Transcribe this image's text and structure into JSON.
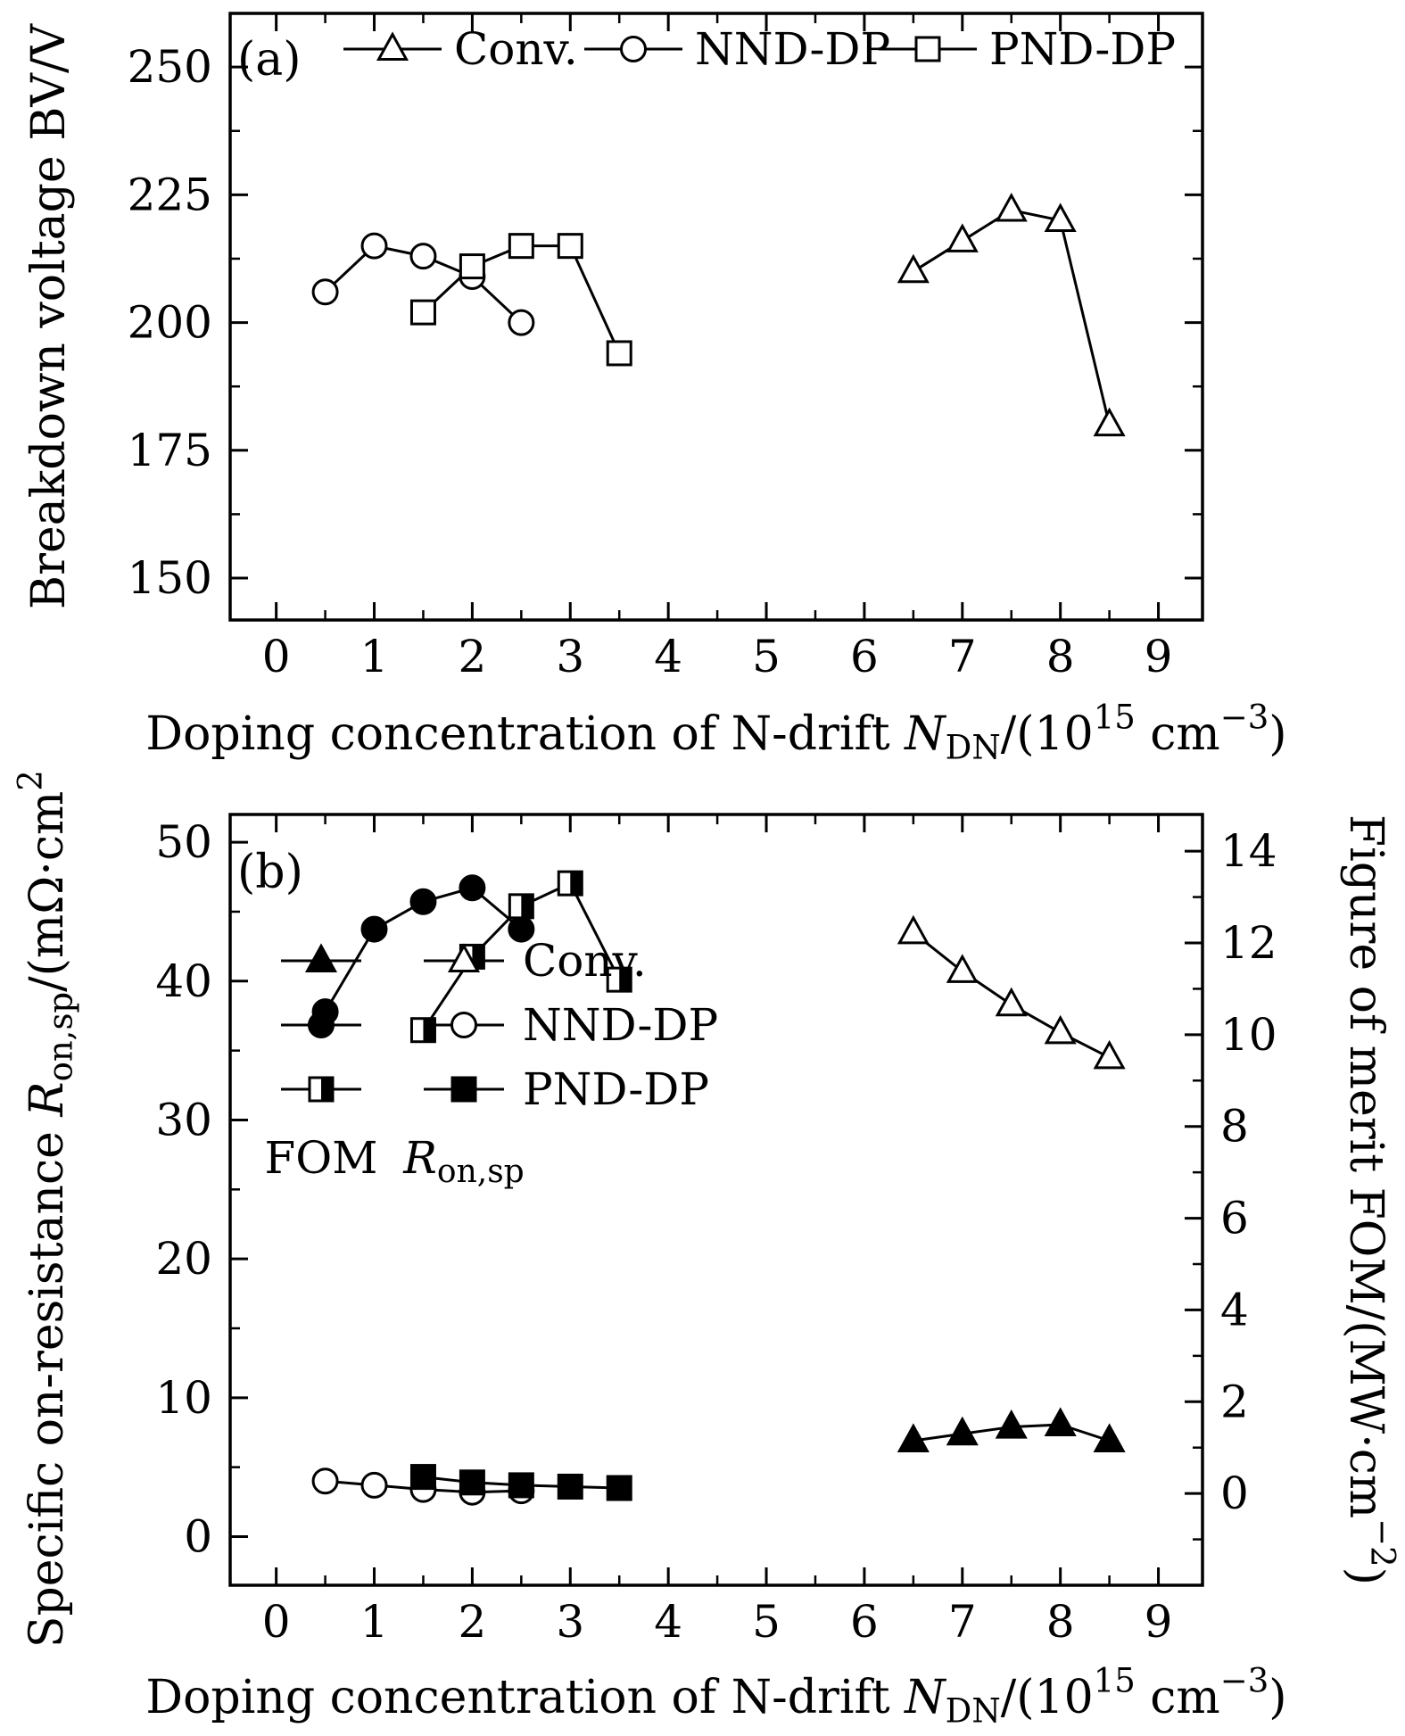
{
  "colors": {
    "ink": "#000000",
    "background": "#ffffff"
  },
  "chart_data": [
    {
      "id": "panel_a",
      "type": "line",
      "panel_tag": "(a)",
      "xlabel_parts": [
        {
          "t": "Doping concentration of N-drift "
        },
        {
          "t": "N",
          "i": true
        },
        {
          "t": "DN",
          "sub": true
        },
        {
          "t": "/(10"
        },
        {
          "t": "15",
          "sup": true
        },
        {
          "t": " cm"
        },
        {
          "t": "−3",
          "sup": true
        },
        {
          "t": ")"
        }
      ],
      "ylabel_parts": [
        {
          "t": "Breakdown voltage BV/V"
        }
      ],
      "xlim": [
        -0.47,
        9.45
      ],
      "ylim": [
        141.8,
        260.5
      ],
      "xticks": [
        0,
        1,
        2,
        3,
        4,
        5,
        6,
        7,
        8,
        9
      ],
      "xminor_step": 0.5,
      "yticks": [
        150,
        175,
        200,
        225,
        250
      ],
      "yminor_step": 12.5,
      "grid": false,
      "legend": {
        "position": "top-inside",
        "items": [
          {
            "marker": "triangle-open",
            "label": "Conv."
          },
          {
            "marker": "circle-open",
            "label": "NND-DP"
          },
          {
            "marker": "square-open",
            "label": "PND-DP"
          }
        ]
      },
      "series": [
        {
          "name": "Conv.",
          "marker": "triangle-open",
          "x": [
            6.5,
            7.0,
            7.5,
            8.0,
            8.5
          ],
          "y": [
            210,
            216,
            222,
            220,
            180
          ]
        },
        {
          "name": "NND-DP",
          "marker": "circle-open",
          "x": [
            0.5,
            1.0,
            1.5,
            2.0,
            2.5
          ],
          "y": [
            206,
            215,
            213,
            209,
            200
          ]
        },
        {
          "name": "PND-DP",
          "marker": "square-open",
          "x": [
            1.5,
            2.0,
            2.5,
            3.0,
            3.5
          ],
          "y": [
            202,
            211,
            215,
            215,
            194
          ]
        }
      ]
    },
    {
      "id": "panel_b",
      "type": "line",
      "panel_tag": "(b)",
      "xlabel_parts": [
        {
          "t": "Doping concentration of N-drift "
        },
        {
          "t": "N",
          "i": true
        },
        {
          "t": "DN",
          "sub": true
        },
        {
          "t": "/(10"
        },
        {
          "t": "15",
          "sup": true
        },
        {
          "t": " cm"
        },
        {
          "t": "−3",
          "sup": true
        },
        {
          "t": ")"
        }
      ],
      "ylabel_left_parts": [
        {
          "t": "Specific on-resistance "
        },
        {
          "t": "R",
          "i": true
        },
        {
          "t": "on,sp",
          "sub": true
        },
        {
          "t": "/(mΩ·cm"
        },
        {
          "t": "2",
          "sup": true
        },
        {
          "t": ")"
        }
      ],
      "ylabel_right_parts": [
        {
          "t": "Figure of merit FOM/(MW·cm"
        },
        {
          "t": "−2",
          "sup": true
        },
        {
          "t": ")"
        }
      ],
      "xlim": [
        -0.47,
        9.45
      ],
      "ylim_left": [
        -3.5,
        52
      ],
      "ylim_right": [
        -2.0,
        14.8
      ],
      "xticks": [
        0,
        1,
        2,
        3,
        4,
        5,
        6,
        7,
        8,
        9
      ],
      "xminor_step": 0.5,
      "yticks_left": [
        0,
        10,
        20,
        30,
        40,
        50
      ],
      "yminor_step_left": 5,
      "yticks_right": [
        0,
        2,
        4,
        6,
        8,
        10,
        12,
        14
      ],
      "yminor_step_right": 1,
      "grid": false,
      "legend": {
        "position": "middle-left-inside",
        "rows": [
          {
            "marker_fom": "triangle-filled",
            "marker_ron": "triangle-open",
            "label": "Conv."
          },
          {
            "marker_fom": "circle-filled",
            "marker_ron": "circle-open",
            "label": "NND-DP"
          },
          {
            "marker_fom": "square-half",
            "marker_ron": "square-filled",
            "label": "PND-DP"
          }
        ],
        "col_fom_label_parts": [
          {
            "t": "FOM"
          }
        ],
        "col_ron_label_parts": [
          {
            "t": "R",
            "i": true
          },
          {
            "t": "on,sp",
            "sub": true
          }
        ]
      },
      "series": [
        {
          "name": "Conv. Ron,sp",
          "axis": "left",
          "marker": "triangle-open",
          "x": [
            6.5,
            7.0,
            7.5,
            8.0,
            8.5
          ],
          "y": [
            43.5,
            40.7,
            38.3,
            36.3,
            34.5
          ]
        },
        {
          "name": "NND-DP Ron,sp",
          "axis": "left",
          "marker": "circle-open",
          "x": [
            0.5,
            1.0,
            1.5,
            2.0,
            2.5
          ],
          "y": [
            4.0,
            3.7,
            3.4,
            3.2,
            3.3
          ]
        },
        {
          "name": "PND-DP Ron,sp",
          "axis": "left",
          "marker": "square-filled",
          "x": [
            1.5,
            2.0,
            2.5,
            3.0,
            3.5
          ],
          "y": [
            4.3,
            3.9,
            3.7,
            3.6,
            3.5
          ]
        },
        {
          "name": "Conv. FOM",
          "axis": "right",
          "marker": "triangle-filled",
          "x": [
            6.5,
            7.0,
            7.5,
            8.0,
            8.5
          ],
          "y": [
            1.15,
            1.3,
            1.45,
            1.5,
            1.15
          ]
        },
        {
          "name": "NND-DP FOM",
          "axis": "right",
          "marker": "circle-filled",
          "x": [
            0.5,
            1.0,
            1.5,
            2.0,
            2.5
          ],
          "y": [
            10.5,
            12.3,
            12.9,
            13.2,
            12.3
          ]
        },
        {
          "name": "PND-DP FOM",
          "axis": "right",
          "marker": "square-half",
          "x": [
            1.5,
            2.0,
            2.5,
            3.0,
            3.5
          ],
          "y": [
            10.1,
            11.7,
            12.8,
            13.3,
            11.2
          ]
        }
      ]
    }
  ]
}
